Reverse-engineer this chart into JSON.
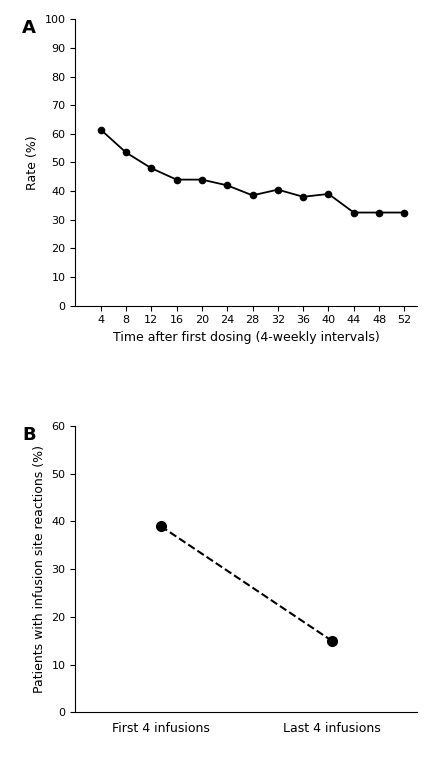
{
  "panel_a": {
    "label": "A",
    "x": [
      4,
      8,
      12,
      16,
      20,
      24,
      28,
      32,
      36,
      40,
      44,
      48,
      52
    ],
    "y": [
      61.5,
      53.5,
      48.0,
      44.0,
      44.0,
      42.0,
      38.5,
      40.5,
      38.0,
      39.0,
      32.5,
      32.5,
      32.5
    ],
    "xlim": [
      0,
      54
    ],
    "ylim": [
      0,
      100
    ],
    "xticks": [
      4,
      8,
      12,
      16,
      20,
      24,
      28,
      32,
      36,
      40,
      44,
      48,
      52
    ],
    "yticks": [
      0,
      10,
      20,
      30,
      40,
      50,
      60,
      70,
      80,
      90,
      100
    ],
    "xlabel": "Time after first dosing (4-weekly intervals)",
    "ylabel": "Rate (%)",
    "line_color": "#000000",
    "marker": "o",
    "markersize": 4.5,
    "linewidth": 1.3
  },
  "panel_b": {
    "label": "B",
    "x": [
      0,
      1
    ],
    "y": [
      39.0,
      15.0
    ],
    "xlim": [
      -0.5,
      1.5
    ],
    "ylim": [
      0,
      60
    ],
    "xtick_positions": [
      0,
      1
    ],
    "xtick_labels": [
      "First 4 infusions",
      "Last 4 infusions"
    ],
    "yticks": [
      0,
      10,
      20,
      30,
      40,
      50,
      60
    ],
    "ylabel": "Patients with infusion site reactions (%)",
    "line_color": "#000000",
    "marker": "o",
    "markersize": 7,
    "linewidth": 1.5,
    "linestyle": "--"
  },
  "background_color": "#ffffff",
  "font_family": "Arial",
  "tick_labelsize": 8,
  "axis_labelsize": 9,
  "panel_label_fontsize": 13
}
